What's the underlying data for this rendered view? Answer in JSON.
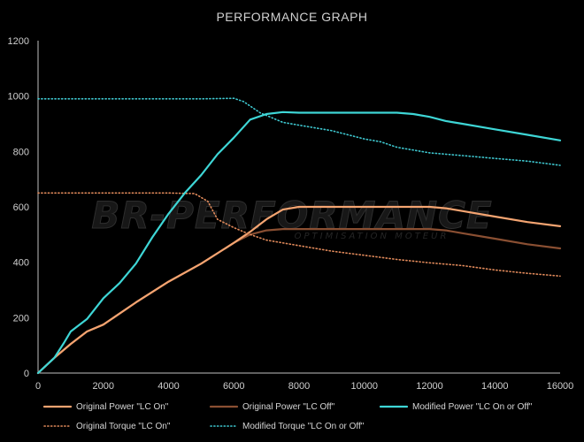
{
  "chart_data": {
    "type": "line",
    "title": "PERFORMANCE GRAPH",
    "xlim": [
      0,
      16000
    ],
    "ylim": [
      0,
      1200
    ],
    "xticks": [
      0,
      2000,
      4000,
      6000,
      8000,
      10000,
      12000,
      14000,
      16000
    ],
    "yticks": [
      0,
      200,
      400,
      600,
      800,
      1000,
      1200
    ],
    "grid": "none",
    "legend_position": "bottom",
    "watermark": {
      "line1": "BR-PERFORMANCE",
      "line2": "OPTIMISATION MOTEUR"
    },
    "series": [
      {
        "name": "Original Power \"LC On\"",
        "color": "#f4a471",
        "style": "solid",
        "x": [
          0,
          500,
          1000,
          1500,
          2000,
          3000,
          4000,
          5000,
          6000,
          6500,
          7000,
          7500,
          8000,
          9000,
          10000,
          11000,
          12000,
          12500,
          13000,
          14000,
          15000,
          16000
        ],
        "y": [
          0,
          55,
          105,
          150,
          175,
          255,
          330,
          395,
          470,
          510,
          555,
          590,
          600,
          600,
          600,
          600,
          600,
          595,
          585,
          565,
          545,
          530
        ]
      },
      {
        "name": "Original Power \"LC Off\"",
        "color": "#8a4f32",
        "style": "solid",
        "x": [
          0,
          500,
          1000,
          1500,
          2000,
          3000,
          4000,
          5000,
          6000,
          6500,
          7000,
          7500,
          8000,
          9000,
          10000,
          11000,
          12000,
          12500,
          13000,
          14000,
          15000,
          16000
        ],
        "y": [
          0,
          55,
          105,
          150,
          175,
          255,
          330,
          395,
          470,
          500,
          515,
          520,
          520,
          520,
          520,
          520,
          520,
          515,
          505,
          485,
          465,
          450
        ]
      },
      {
        "name": "Modified Power \"LC On or Off\"",
        "color": "#3ed6d6",
        "style": "solid",
        "x": [
          0,
          500,
          800,
          1000,
          1500,
          2000,
          2500,
          3000,
          3500,
          4000,
          4500,
          5000,
          5500,
          6000,
          6500,
          7000,
          7500,
          8000,
          9000,
          10000,
          11000,
          11500,
          12000,
          12500,
          13000,
          14000,
          15000,
          16000
        ],
        "y": [
          0,
          55,
          110,
          150,
          195,
          270,
          325,
          395,
          490,
          575,
          650,
          715,
          790,
          850,
          915,
          935,
          942,
          940,
          940,
          940,
          940,
          935,
          925,
          910,
          900,
          880,
          860,
          840
        ]
      },
      {
        "name": "Original Torque \"LC On\"",
        "color": "#e0895a",
        "style": "dotted",
        "x": [
          0,
          1000,
          2000,
          3000,
          4000,
          4800,
          5200,
          5500,
          6000,
          6500,
          7000,
          8000,
          9000,
          10000,
          11000,
          12000,
          13000,
          14000,
          15000,
          16000
        ],
        "y": [
          650,
          650,
          650,
          650,
          650,
          648,
          620,
          555,
          525,
          500,
          480,
          460,
          440,
          425,
          410,
          398,
          388,
          372,
          360,
          350
        ]
      },
      {
        "name": "Modified Torque \"LC On or Off\"",
        "color": "#3ec7cf",
        "style": "dotted",
        "x": [
          0,
          1000,
          2000,
          3000,
          4000,
          5000,
          6000,
          6300,
          6800,
          7500,
          8000,
          9000,
          9500,
          10000,
          10500,
          11000,
          12000,
          13000,
          14000,
          15000,
          16000
        ],
        "y": [
          990,
          990,
          990,
          990,
          990,
          990,
          992,
          980,
          940,
          905,
          895,
          875,
          860,
          845,
          835,
          815,
          795,
          785,
          775,
          765,
          750
        ]
      }
    ]
  }
}
